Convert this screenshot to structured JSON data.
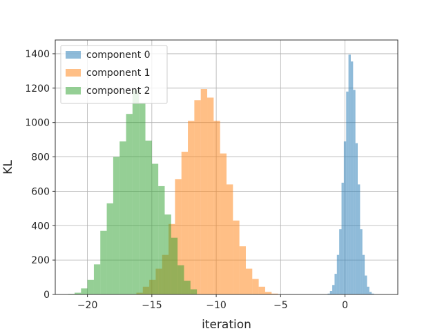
{
  "chart_data": {
    "type": "bar",
    "histogram": true,
    "xlabel": "iteration",
    "ylabel": "KL",
    "xlim": [
      -22.5,
      4.1
    ],
    "ylim": [
      0,
      1480
    ],
    "xticks": [
      -20,
      -15,
      -10,
      -5,
      0
    ],
    "yticks": [
      0,
      200,
      400,
      600,
      800,
      1000,
      1200,
      1400
    ],
    "xtick_labels": [
      "−20",
      "−15",
      "−10",
      "−5",
      "0"
    ],
    "ytick_labels": [
      "0",
      "200",
      "400",
      "600",
      "800",
      "1000",
      "1200",
      "1400"
    ],
    "grid": true,
    "legend_position": "upper-left",
    "series": [
      {
        "name": "component 0",
        "color": "#1f77b4",
        "alpha": 0.5,
        "bin_edges": [
          -1.35,
          -1.17,
          -0.99,
          -0.81,
          -0.63,
          -0.45,
          -0.27,
          -0.09,
          0.09,
          0.27,
          0.45,
          0.63,
          0.81,
          0.99,
          1.17,
          1.35,
          1.53,
          1.71,
          1.89,
          2.07,
          2.25
        ],
        "counts": [
          5,
          20,
          55,
          120,
          230,
          380,
          650,
          890,
          1180,
          1395,
          1355,
          1190,
          880,
          640,
          380,
          230,
          110,
          45,
          15,
          5
        ]
      },
      {
        "name": "component 1",
        "color": "#ff7f0e",
        "alpha": 0.5,
        "bin_edges": [
          -16.2,
          -15.7,
          -15.2,
          -14.7,
          -14.2,
          -13.7,
          -13.2,
          -12.7,
          -12.2,
          -11.7,
          -11.2,
          -10.7,
          -10.2,
          -9.7,
          -9.2,
          -8.7,
          -8.2,
          -7.7,
          -7.2,
          -6.7,
          -6.2,
          -5.7,
          -5.2,
          -4.7
        ],
        "counts": [
          10,
          45,
          85,
          150,
          230,
          410,
          670,
          830,
          1010,
          1130,
          1195,
          1145,
          1010,
          820,
          640,
          430,
          280,
          150,
          90,
          45,
          15,
          5,
          2
        ]
      },
      {
        "name": "component 2",
        "color": "#2ca02c",
        "alpha": 0.5,
        "bin_edges": [
          -21.5,
          -21.0,
          -20.5,
          -20.0,
          -19.5,
          -19.0,
          -18.5,
          -18.0,
          -17.5,
          -17.0,
          -16.5,
          -16.0,
          -15.5,
          -15.0,
          -14.5,
          -14.0,
          -13.5,
          -13.0,
          -12.5,
          -12.0,
          -11.5
        ],
        "counts": [
          3,
          10,
          35,
          85,
          175,
          370,
          530,
          800,
          890,
          1050,
          1190,
          1115,
          895,
          760,
          630,
          465,
          330,
          170,
          80,
          30
        ]
      }
    ]
  }
}
